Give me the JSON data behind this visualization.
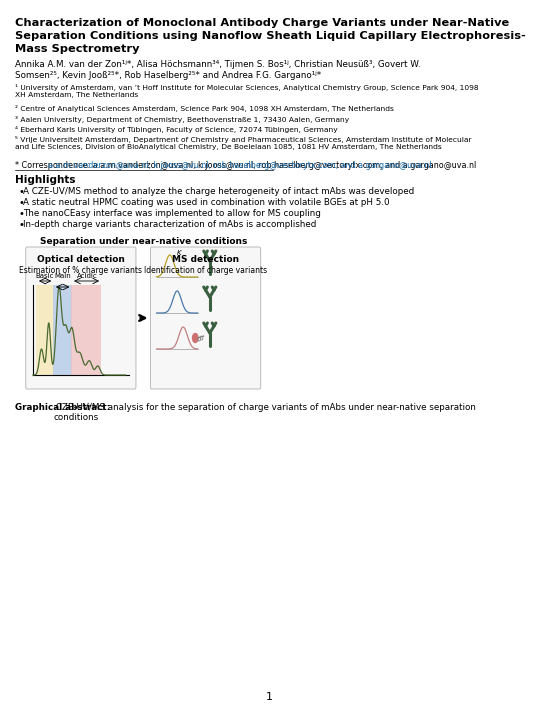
{
  "title_lines": [
    "Characterization of Monoclonal Antibody Charge Variants under Near-Native",
    "Separation Conditions using Nanoflow Sheath Liquid Capillary Electrophoresis-",
    "Mass Spectrometry"
  ],
  "author_lines": [
    "Annika A.M. van der Zon¹ʲ*, Alisa Höchsmann³⁴, Tijmen S. Bos¹ʲ, Christian Neusüß³, Govert W.",
    "Somsen²⁵, Kevin Jooß²⁵*, Rob Haselberg²⁵* and Andrea F.G. Gargano¹ʲ*"
  ],
  "affils": [
    "¹ University of Amsterdam, van ’t Hoff Institute for Molecular Sciences, Analytical Chemistry Group, Science Park 904, 1098\nXH Amsterdam, The Netherlands",
    "² Centre of Analytical Sciences Amsterdam, Science Park 904, 1098 XH Amsterdam, The Netherlands",
    "³ Aalen University, Department of Chemistry, Beethovenstraße 1, 73430 Aalen, Germany",
    "⁴ Eberhard Karls University of Tübingen, Faculty of Science, 72074 Tübingen, Germany",
    "⁵ Vrije Universiteit Amsterdam, Department of Chemistry and Pharmaceutical Sciences, Amsterdam Institute of Molecular\nand Life Sciences, Division of BioAnalytical Chemistry, De Boelelaan 1085, 1081 HV Amsterdam, The Netherlands"
  ],
  "corr_label": "* Correspondence: ",
  "corr_emails": "a.a.m.vanderzon@uva.nl, k.jooss@vu.nl, rob.haselberg@vectorytx.com, and a.gargano@uva.nl",
  "highlights_title": "Highlights",
  "bullets": [
    "A CZE-UV/MS method to analyze the charge heterogeneity of intact mAbs was developed",
    "A static neutral HPMC coating was used in combination with volatile BGEs at pH 5.0",
    "The nanoCEasy interface was implemented to allow for MS coupling",
    "In-depth charge variants characterization of mAbs is accomplished"
  ],
  "sep_title": "Separation under near-native conditions",
  "opt_title": "Optical detection",
  "opt_sub": "Estimation of % charge variants",
  "ms_title": "MS detection",
  "ms_sub": "Identification of charge variants",
  "label_basic": "Basic",
  "label_main": "Main",
  "label_acidic": "Acidic",
  "ga_bold": "Graphical abstract:",
  "ga_text": " CZE-UV/MS analysis for the separation of charge variants of mAbs under near-native separation\nconditions",
  "page_num": "1",
  "bg_color": "#ffffff",
  "title_color": "#000000",
  "email_color": "#1a6faf",
  "peak_color_basic": "#b5a020",
  "peak_color_main": "#4a7aaa",
  "peak_color_acidic": "#c08080",
  "antibody_color": "#3a6040",
  "region_basic": "#f5e6b0",
  "region_main": "#b0c8e8",
  "region_acidic": "#f0c0c0",
  "electro_color": "#4a6a30"
}
